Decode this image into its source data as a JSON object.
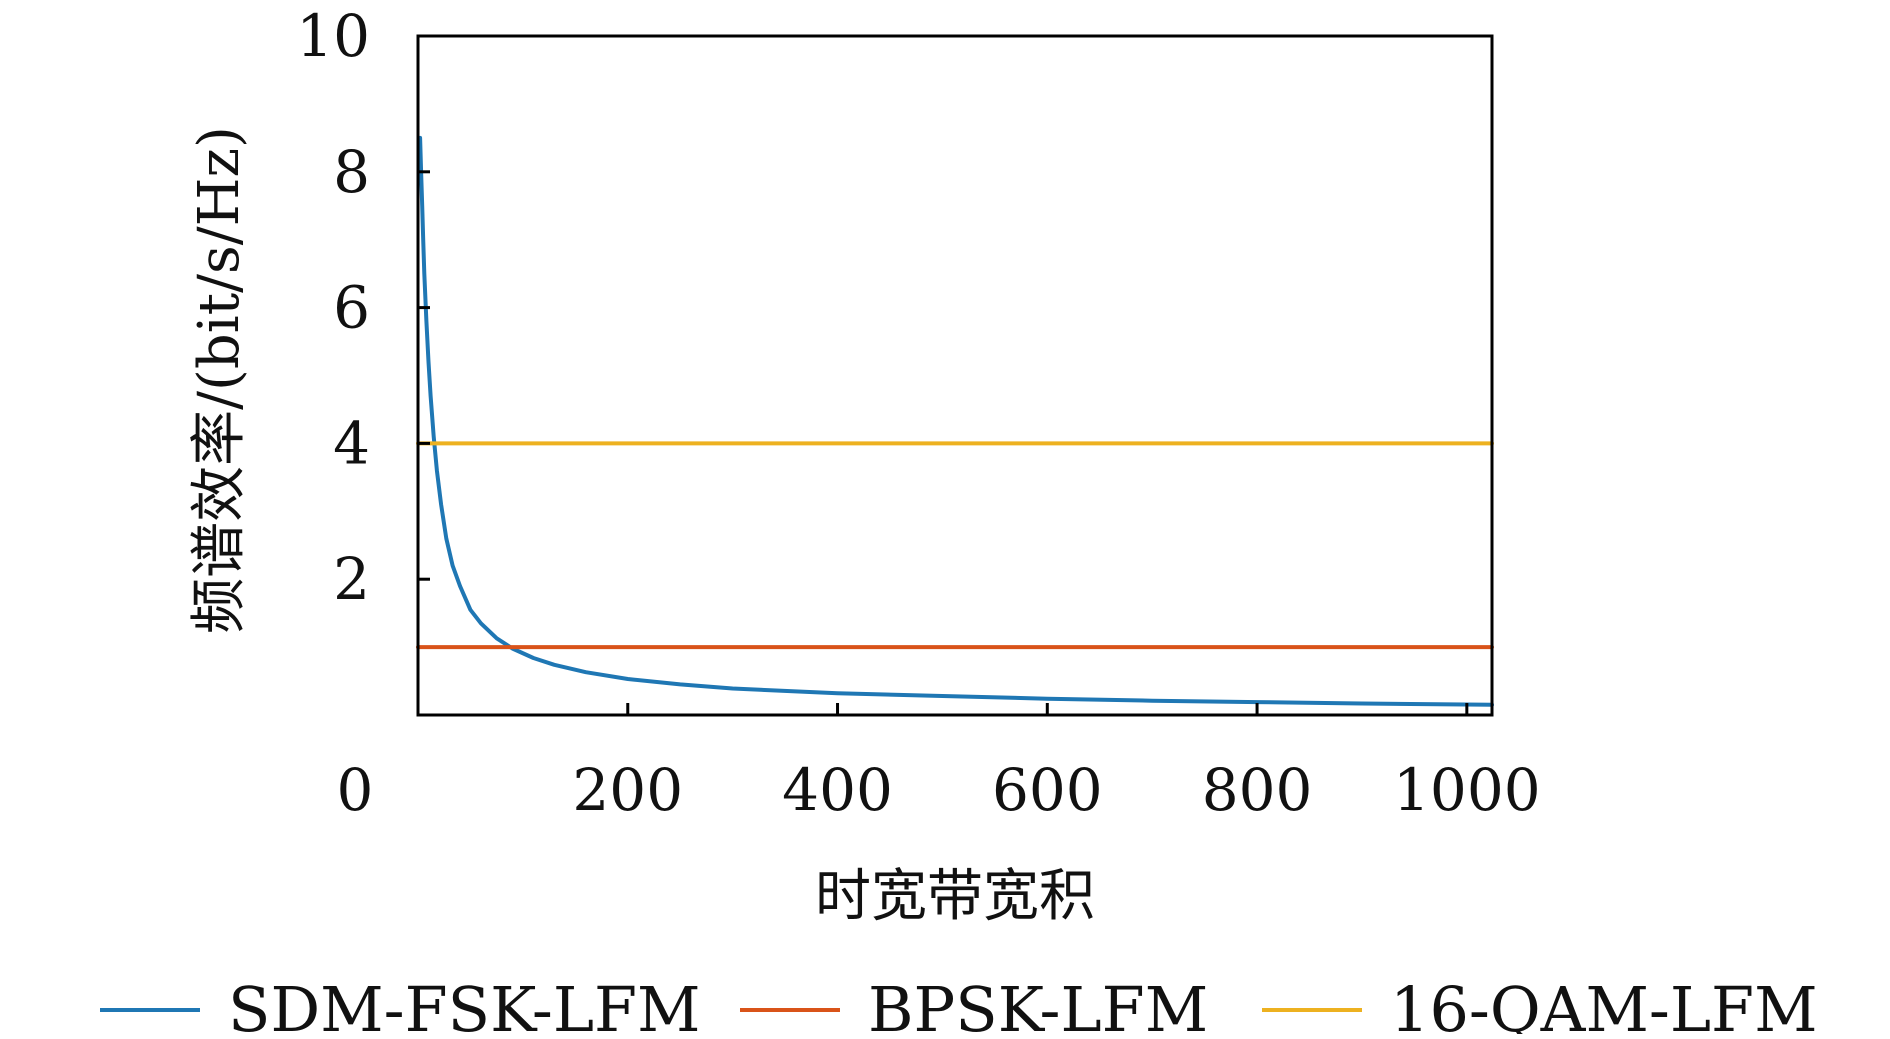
{
  "chart_data": {
    "type": "line",
    "title": "",
    "xlabel": "时宽带宽积",
    "ylabel": "频谱效率/(bit/s/Hz)",
    "xlim": [
      0,
      1024
    ],
    "ylim": [
      0,
      10
    ],
    "x_ticks": [
      0,
      200,
      400,
      600,
      800,
      1000
    ],
    "x_tick_labels": [
      "0",
      "200",
      "400",
      "600",
      "800",
      "1000"
    ],
    "y_ticks": [
      2,
      4,
      6,
      8,
      10
    ],
    "y_tick_labels": [
      "2",
      "4",
      "6",
      "8",
      "10"
    ],
    "grid": false,
    "legend_position": "bottom",
    "series": [
      {
        "name": "SDM-FSK-LFM",
        "color": "#1f77b4",
        "x": [
          2,
          3,
          4,
          5,
          6,
          8,
          10,
          12,
          15,
          18,
          22,
          27,
          33,
          40,
          50,
          60,
          75,
          90,
          110,
          130,
          160,
          200,
          250,
          300,
          400,
          500,
          600,
          700,
          800,
          900,
          1024
        ],
        "y": [
          8.5,
          8.0,
          7.5,
          7.0,
          6.5,
          5.8,
          5.2,
          4.7,
          4.1,
          3.6,
          3.1,
          2.6,
          2.2,
          1.9,
          1.55,
          1.35,
          1.13,
          0.98,
          0.84,
          0.74,
          0.63,
          0.53,
          0.45,
          0.39,
          0.32,
          0.28,
          0.24,
          0.21,
          0.19,
          0.17,
          0.15
        ]
      },
      {
        "name": "BPSK-LFM",
        "color": "#d95319",
        "x": [
          0,
          1024
        ],
        "y": [
          1,
          1
        ]
      },
      {
        "name": "16-QAM-LFM",
        "color": "#edb120",
        "x": [
          0,
          1024
        ],
        "y": [
          4,
          4
        ]
      }
    ]
  }
}
